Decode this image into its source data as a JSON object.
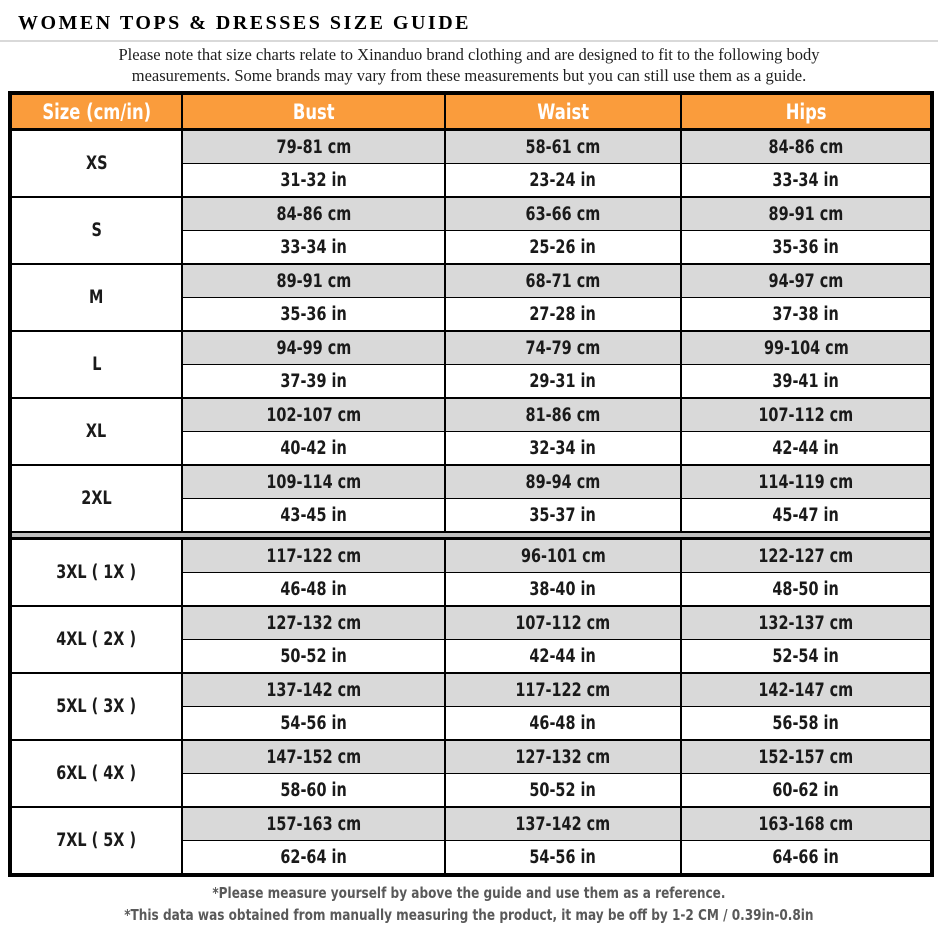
{
  "page": {
    "title": "WOMEN TOPS & DRESSES SIZE GUIDE",
    "subtitle_line1": "Please note that size charts relate to  Xinanduo brand clothing and are designed to fit to the following body",
    "subtitle_line2": "measurements. Some brands may vary from these measurements but you can still use them as a guide.",
    "brand": "Xinanduo"
  },
  "table": {
    "columns": [
      "Size (cm/in)",
      "Bust",
      "Waist",
      "Hips"
    ],
    "divider_after_index": 5,
    "sizes": [
      {
        "size": "XS",
        "bust_cm": "79-81 cm",
        "waist_cm": "58-61 cm",
        "hips_cm": "84-86 cm",
        "bust_in": "31-32 in",
        "waist_in": "23-24 in",
        "hips_in": "33-34 in"
      },
      {
        "size": "S",
        "bust_cm": "84-86 cm",
        "waist_cm": "63-66 cm",
        "hips_cm": "89-91 cm",
        "bust_in": "33-34 in",
        "waist_in": "25-26 in",
        "hips_in": "35-36 in"
      },
      {
        "size": "M",
        "bust_cm": "89-91 cm",
        "waist_cm": "68-71 cm",
        "hips_cm": "94-97 cm",
        "bust_in": "35-36 in",
        "waist_in": "27-28 in",
        "hips_in": "37-38 in"
      },
      {
        "size": "L",
        "bust_cm": "94-99 cm",
        "waist_cm": "74-79 cm",
        "hips_cm": "99-104 cm",
        "bust_in": "37-39 in",
        "waist_in": "29-31 in",
        "hips_in": "39-41 in"
      },
      {
        "size": "XL",
        "bust_cm": "102-107 cm",
        "waist_cm": "81-86 cm",
        "hips_cm": "107-112 cm",
        "bust_in": "40-42 in",
        "waist_in": "32-34 in",
        "hips_in": "42-44 in"
      },
      {
        "size": "2XL",
        "bust_cm": "109-114 cm",
        "waist_cm": "89-94 cm",
        "hips_cm": "114-119 cm",
        "bust_in": "43-45 in",
        "waist_in": "35-37 in",
        "hips_in": "45-47 in"
      },
      {
        "size": "3XL ( 1X )",
        "bust_cm": "117-122 cm",
        "waist_cm": "96-101 cm",
        "hips_cm": "122-127 cm",
        "bust_in": "46-48 in",
        "waist_in": "38-40 in",
        "hips_in": "48-50 in"
      },
      {
        "size": "4XL ( 2X )",
        "bust_cm": "127-132 cm",
        "waist_cm": "107-112 cm",
        "hips_cm": "132-137 cm",
        "bust_in": "50-52 in",
        "waist_in": "42-44 in",
        "hips_in": "52-54 in"
      },
      {
        "size": "5XL ( 3X )",
        "bust_cm": "137-142 cm",
        "waist_cm": "117-122 cm",
        "hips_cm": "142-147 cm",
        "bust_in": "54-56 in",
        "waist_in": "46-48 in",
        "hips_in": "56-58 in"
      },
      {
        "size": "6XL ( 4X )",
        "bust_cm": "147-152 cm",
        "waist_cm": "127-132 cm",
        "hips_cm": "152-157 cm",
        "bust_in": "58-60 in",
        "waist_in": "50-52 in",
        "hips_in": "60-62 in"
      },
      {
        "size": "7XL ( 5X )",
        "bust_cm": "157-163 cm",
        "waist_cm": "137-142 cm",
        "hips_cm": "163-168 cm",
        "bust_in": "62-64 in",
        "waist_in": "54-56 in",
        "hips_in": "64-66 in"
      }
    ]
  },
  "footnotes": {
    "line1": "*Please measure yourself by above the guide and use them as a reference.",
    "line2": "*This data was obtained from manually measuring the product, it may be off by 1-2 CM / 0.39in-0.8in"
  },
  "colors": {
    "header_orange": "#fa9c3c",
    "row_gray": "#d9d9d9",
    "divider_gray": "#c0c0c0",
    "border_black": "#000000",
    "footnote_gray": "#595959"
  }
}
